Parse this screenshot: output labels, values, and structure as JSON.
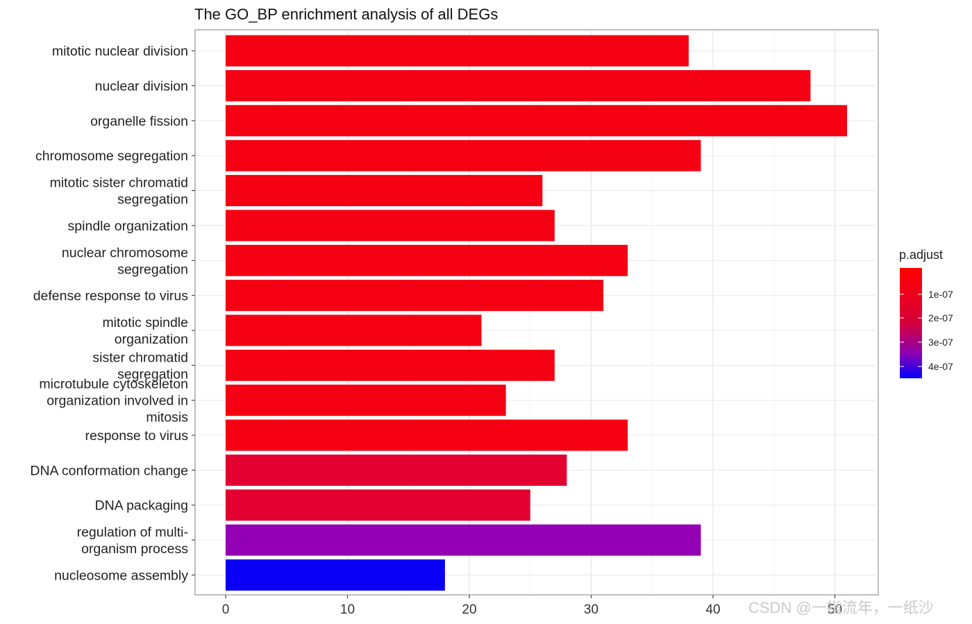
{
  "chart_data": {
    "type": "bar",
    "orientation": "horizontal",
    "title": "The GO_BP enrichment analysis of all DEGs",
    "xlabel": "",
    "ylabel": "",
    "xlim": [
      0,
      53
    ],
    "xticks": [
      "0",
      "10",
      "20",
      "30",
      "40",
      "50"
    ],
    "grid": true,
    "categories": [
      [
        "mitotic nuclear division"
      ],
      [
        "nuclear division"
      ],
      [
        "organelle fission"
      ],
      [
        "chromosome segregation"
      ],
      [
        "mitotic sister chromatid",
        "segregation"
      ],
      [
        "spindle organization"
      ],
      [
        "nuclear chromosome",
        "segregation"
      ],
      [
        "defense response to virus"
      ],
      [
        "mitotic spindle",
        "organization"
      ],
      [
        "sister chromatid",
        "segregation"
      ],
      [
        "microtubule cytoskeleton",
        "organization involved in",
        "mitosis"
      ],
      [
        "response to virus"
      ],
      [
        "DNA conformation change"
      ],
      [
        "DNA packaging"
      ],
      [
        "regulation of multi-",
        "organism process"
      ],
      [
        "nucleosome assembly"
      ]
    ],
    "values": [
      38,
      48,
      51,
      39,
      26,
      27,
      33,
      31,
      21,
      27,
      23,
      33,
      28,
      25,
      39,
      18
    ],
    "bar_colors": [
      "#f50013",
      "#f50013",
      "#f50013",
      "#f50013",
      "#f50013",
      "#f50013",
      "#f50013",
      "#f50013",
      "#f50013",
      "#f50013",
      "#f50013",
      "#f50013",
      "#e30030",
      "#e30030",
      "#9400b3",
      "#0a00f5"
    ],
    "legend": {
      "title": "p.adjust",
      "placement": "right",
      "ticks": [
        "1e-07",
        "2e-07",
        "3e-07",
        "4e-07"
      ],
      "gradient_top": "#ff0000",
      "gradient_bottom": "#0000ff"
    }
  },
  "watermark": "CSDN @一指流年，一纸沙"
}
